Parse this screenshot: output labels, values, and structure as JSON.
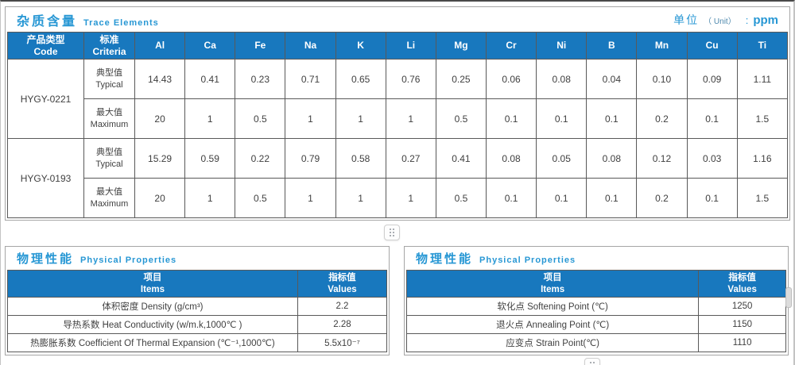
{
  "colors": {
    "header_blue": "#1878be",
    "title_blue": "#2797d4",
    "grid_border": "#595959"
  },
  "ui": {
    "drag_handle_icon": "grid-dots",
    "side_resize_tab": "vertical-grip"
  },
  "trace_table": {
    "title_zh": "杂质含量",
    "title_en": "Trace Elements",
    "unit_zh": "单位",
    "unit_paren": "（ Unit）",
    "unit_colon": ":",
    "unit_value": "ppm",
    "col_code_zh": "产品类型",
    "col_code_en": "Code",
    "col_criteria_zh": "标准",
    "col_criteria_en": "Criteria",
    "elements": [
      "Al",
      "Ca",
      "Fe",
      "Na",
      "K",
      "Li",
      "Mg",
      "Cr",
      "Ni",
      "B",
      "Mn",
      "Cu",
      "Ti"
    ],
    "products": [
      {
        "code": "HYGY-0221",
        "rows": [
          {
            "label_zh": "典型值",
            "label_en": "Typical",
            "values": [
              "14.43",
              "0.41",
              "0.23",
              "0.71",
              "0.65",
              "0.76",
              "0.25",
              "0.06",
              "0.08",
              "0.04",
              "0.10",
              "0.09",
              "1.11"
            ]
          },
          {
            "label_zh": "最大值",
            "label_en": "Maximum",
            "values": [
              "20",
              "1",
              "0.5",
              "1",
              "1",
              "1",
              "0.5",
              "0.1",
              "0.1",
              "0.1",
              "0.2",
              "0.1",
              "1.5"
            ]
          }
        ]
      },
      {
        "code": "HYGY-0193",
        "rows": [
          {
            "label_zh": "典型值",
            "label_en": "Typical",
            "values": [
              "15.29",
              "0.59",
              "0.22",
              "0.79",
              "0.58",
              "0.27",
              "0.41",
              "0.08",
              "0.05",
              "0.08",
              "0.12",
              "0.03",
              "1.16"
            ]
          },
          {
            "label_zh": "最大值",
            "label_en": "Maximum",
            "values": [
              "20",
              "1",
              "0.5",
              "1",
              "1",
              "1",
              "0.5",
              "0.1",
              "0.1",
              "0.1",
              "0.2",
              "0.1",
              "1.5"
            ]
          }
        ]
      }
    ]
  },
  "physical_left": {
    "title_zh": "物理性能",
    "title_en": "Physical Properties",
    "col_items_zh": "项目",
    "col_items_en": "Items",
    "col_values_zh": "指标值",
    "col_values_en": "Values",
    "rows": [
      {
        "item": "体积密度 Density (g/cm³)",
        "value": "2.2"
      },
      {
        "item": "导热系数 Heat Conductivity (w/m.k,1000℃ )",
        "value": "2.28"
      },
      {
        "item": "热膨胀系数 Coefficient Of Thermal Expansion (℃⁻¹,1000℃)",
        "value": "5.5x10⁻⁷"
      }
    ]
  },
  "physical_right": {
    "title_zh": "物理性能",
    "title_en": "Physical Properties",
    "col_items_zh": "项目",
    "col_items_en": "Items",
    "col_values_zh": "指标值",
    "col_values_en": "Values",
    "rows": [
      {
        "item": "软化点 Softening Point (℃)",
        "value": "1250"
      },
      {
        "item": "退火点 Annealing Point (℃)",
        "value": "1150"
      },
      {
        "item": "应变点 Strain Point(℃)",
        "value": "1110"
      }
    ]
  }
}
